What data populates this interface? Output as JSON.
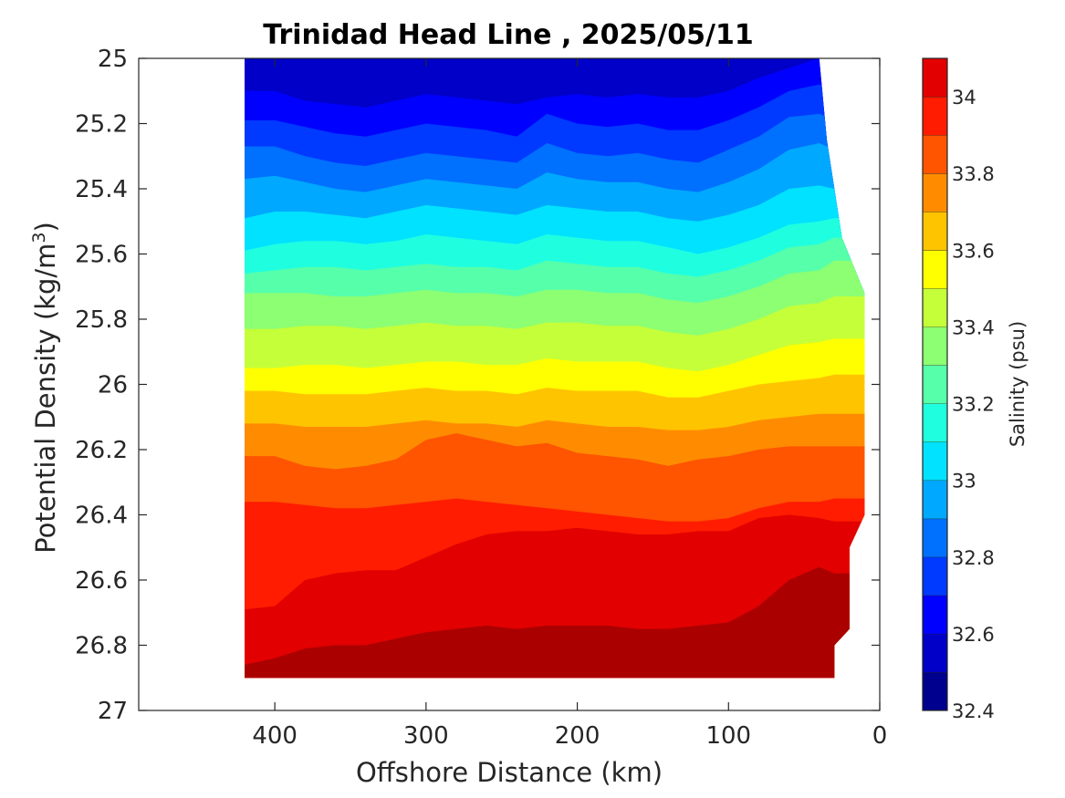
{
  "chart_data": {
    "type": "heatmap",
    "subtype": "filled-contour",
    "title": "Trinidad Head Line , 2025/05/11",
    "xlabel": "Offshore Distance (km)",
    "ylabel": "Potential Density (kg/m",
    "ylabel_sup": "3",
    "ylabel_close": ")",
    "xlim": [
      490,
      0
    ],
    "x_reversed": true,
    "ylim": [
      25,
      27
    ],
    "y_reversed": true,
    "xticks": [
      400,
      300,
      200,
      100,
      0
    ],
    "xtick_labels": [
      "400",
      "300",
      "200",
      "100",
      "0"
    ],
    "yticks": [
      25,
      25.2,
      25.4,
      25.6,
      25.8,
      26,
      26.2,
      26.4,
      26.6,
      26.8,
      27
    ],
    "ytick_labels": [
      "25",
      "25.2",
      "25.4",
      "25.6",
      "25.8",
      "26",
      "26.2",
      "26.4",
      "26.6",
      "26.8",
      "27"
    ],
    "colorbar": {
      "label": "Salinity (psu)",
      "range": [
        32.4,
        34.1
      ],
      "ticks": [
        32.4,
        32.6,
        32.8,
        33,
        33.2,
        33.4,
        33.6,
        33.8,
        34
      ],
      "tick_labels": [
        "32.4",
        "32.6",
        "32.8",
        "33",
        "33.2",
        "33.4",
        "33.6",
        "33.8",
        "34"
      ],
      "levels": [
        32.4,
        32.5,
        32.6,
        32.7,
        32.8,
        32.9,
        33.0,
        33.1,
        33.2,
        33.3,
        33.4,
        33.5,
        33.6,
        33.7,
        33.8,
        33.9,
        34.0,
        34.1
      ],
      "colors": [
        "#00008f",
        "#0000c8",
        "#0000ff",
        "#0039ff",
        "#0070ff",
        "#00a8ff",
        "#00e2ff",
        "#1fffe0",
        "#56ffaa",
        "#8cff73",
        "#c5ff39",
        "#ffff00",
        "#ffc400",
        "#ff8c00",
        "#ff5400",
        "#ff1c00",
        "#e20000",
        "#aa0000"
      ]
    },
    "data_x_range": [
      420,
      30
    ],
    "data_y_range": [
      25,
      26.9
    ],
    "x": [
      420,
      400,
      380,
      360,
      340,
      320,
      300,
      280,
      260,
      240,
      220,
      200,
      180,
      160,
      140,
      120,
      100,
      80,
      60,
      40,
      30
    ],
    "isohalines": [
      {
        "salinity": 32.6,
        "sigma": [
          25.1,
          25.1,
          25.13,
          25.14,
          25.15,
          25.13,
          25.11,
          25.12,
          25.13,
          25.14,
          25.12,
          25.11,
          25.12,
          25.11,
          25.12,
          25.12,
          25.1,
          25.06,
          25.03,
          25.0,
          25.0
        ]
      },
      {
        "salinity": 32.7,
        "sigma": [
          25.19,
          25.19,
          25.21,
          25.23,
          25.24,
          25.22,
          25.2,
          25.21,
          25.22,
          25.24,
          25.17,
          25.2,
          25.21,
          25.2,
          25.22,
          25.22,
          25.19,
          25.15,
          25.1,
          25.08,
          25.1
        ]
      },
      {
        "salinity": 32.8,
        "sigma": [
          25.27,
          25.27,
          25.3,
          25.32,
          25.33,
          25.31,
          25.29,
          25.3,
          25.31,
          25.32,
          25.26,
          25.29,
          25.3,
          25.29,
          25.31,
          25.32,
          25.28,
          25.24,
          25.18,
          25.17,
          25.19
        ]
      },
      {
        "salinity": 32.9,
        "sigma": [
          25.37,
          25.36,
          25.38,
          25.4,
          25.41,
          25.39,
          25.37,
          25.38,
          25.39,
          25.4,
          25.35,
          25.37,
          25.38,
          25.38,
          25.4,
          25.41,
          25.38,
          25.34,
          25.28,
          25.26,
          25.28
        ]
      },
      {
        "salinity": 33.0,
        "sigma": [
          25.49,
          25.47,
          25.47,
          25.48,
          25.49,
          25.47,
          25.45,
          25.46,
          25.47,
          25.48,
          25.45,
          25.46,
          25.47,
          25.47,
          25.49,
          25.5,
          25.48,
          25.45,
          25.4,
          25.39,
          25.4
        ]
      },
      {
        "salinity": 33.1,
        "sigma": [
          25.59,
          25.57,
          25.56,
          25.56,
          25.57,
          25.56,
          25.54,
          25.55,
          25.56,
          25.57,
          25.54,
          25.55,
          25.56,
          25.56,
          25.58,
          25.6,
          25.58,
          25.55,
          25.51,
          25.5,
          25.49
        ]
      },
      {
        "salinity": 33.2,
        "sigma": [
          25.66,
          25.65,
          25.64,
          25.64,
          25.65,
          25.64,
          25.63,
          25.64,
          25.64,
          25.65,
          25.62,
          25.63,
          25.64,
          25.64,
          25.66,
          25.67,
          25.65,
          25.62,
          25.58,
          25.57,
          25.55
        ]
      },
      {
        "salinity": 33.3,
        "sigma": [
          25.72,
          25.72,
          25.72,
          25.73,
          25.73,
          25.72,
          25.71,
          25.72,
          25.72,
          25.73,
          25.71,
          25.71,
          25.72,
          25.72,
          25.74,
          25.75,
          25.73,
          25.7,
          25.66,
          25.65,
          25.62
        ]
      },
      {
        "salinity": 33.4,
        "sigma": [
          25.83,
          25.83,
          25.82,
          25.82,
          25.83,
          25.82,
          25.81,
          25.82,
          25.82,
          25.83,
          25.81,
          25.81,
          25.82,
          25.82,
          25.84,
          25.85,
          25.83,
          25.8,
          25.76,
          25.75,
          25.73
        ]
      },
      {
        "salinity": 33.5,
        "sigma": [
          25.95,
          25.95,
          25.94,
          25.94,
          25.95,
          25.94,
          25.93,
          25.93,
          25.94,
          25.94,
          25.92,
          25.93,
          25.93,
          25.93,
          25.95,
          25.96,
          25.94,
          25.91,
          25.88,
          25.87,
          25.86
        ]
      },
      {
        "salinity": 33.6,
        "sigma": [
          26.02,
          26.02,
          26.03,
          26.03,
          26.03,
          26.02,
          26.01,
          26.02,
          26.02,
          26.03,
          26.01,
          26.02,
          26.02,
          26.02,
          26.04,
          26.04,
          26.02,
          26.0,
          25.99,
          25.98,
          25.97
        ]
      },
      {
        "salinity": 33.7,
        "sigma": [
          26.12,
          26.12,
          26.13,
          26.13,
          26.13,
          26.12,
          26.11,
          26.12,
          26.12,
          26.13,
          26.11,
          26.12,
          26.13,
          26.13,
          26.14,
          26.14,
          26.13,
          26.11,
          26.1,
          26.09,
          26.09
        ]
      },
      {
        "salinity": 33.8,
        "sigma": [
          26.22,
          26.22,
          26.25,
          26.26,
          26.25,
          26.23,
          26.17,
          26.15,
          26.17,
          26.19,
          26.18,
          26.21,
          26.22,
          26.23,
          26.25,
          26.23,
          26.22,
          26.2,
          26.19,
          26.19,
          26.19
        ]
      },
      {
        "salinity": 33.9,
        "sigma": [
          26.36,
          26.36,
          26.37,
          26.38,
          26.38,
          26.37,
          26.36,
          26.35,
          26.36,
          26.37,
          26.38,
          26.39,
          26.4,
          26.41,
          26.42,
          26.42,
          26.41,
          26.38,
          26.36,
          26.36,
          26.35
        ]
      },
      {
        "salinity": 34.0,
        "sigma": [
          26.69,
          26.68,
          26.6,
          26.58,
          26.57,
          26.57,
          26.53,
          26.49,
          26.46,
          26.45,
          26.45,
          26.44,
          26.45,
          26.46,
          26.46,
          26.45,
          26.45,
          26.41,
          26.4,
          26.41,
          26.42
        ]
      },
      {
        "salinity": 34.1,
        "sigma": [
          26.86,
          26.84,
          26.81,
          26.8,
          26.8,
          26.78,
          26.76,
          26.75,
          26.74,
          26.75,
          26.74,
          26.74,
          26.74,
          26.75,
          26.75,
          26.74,
          26.73,
          26.68,
          26.6,
          26.56,
          26.58
        ]
      }
    ]
  }
}
